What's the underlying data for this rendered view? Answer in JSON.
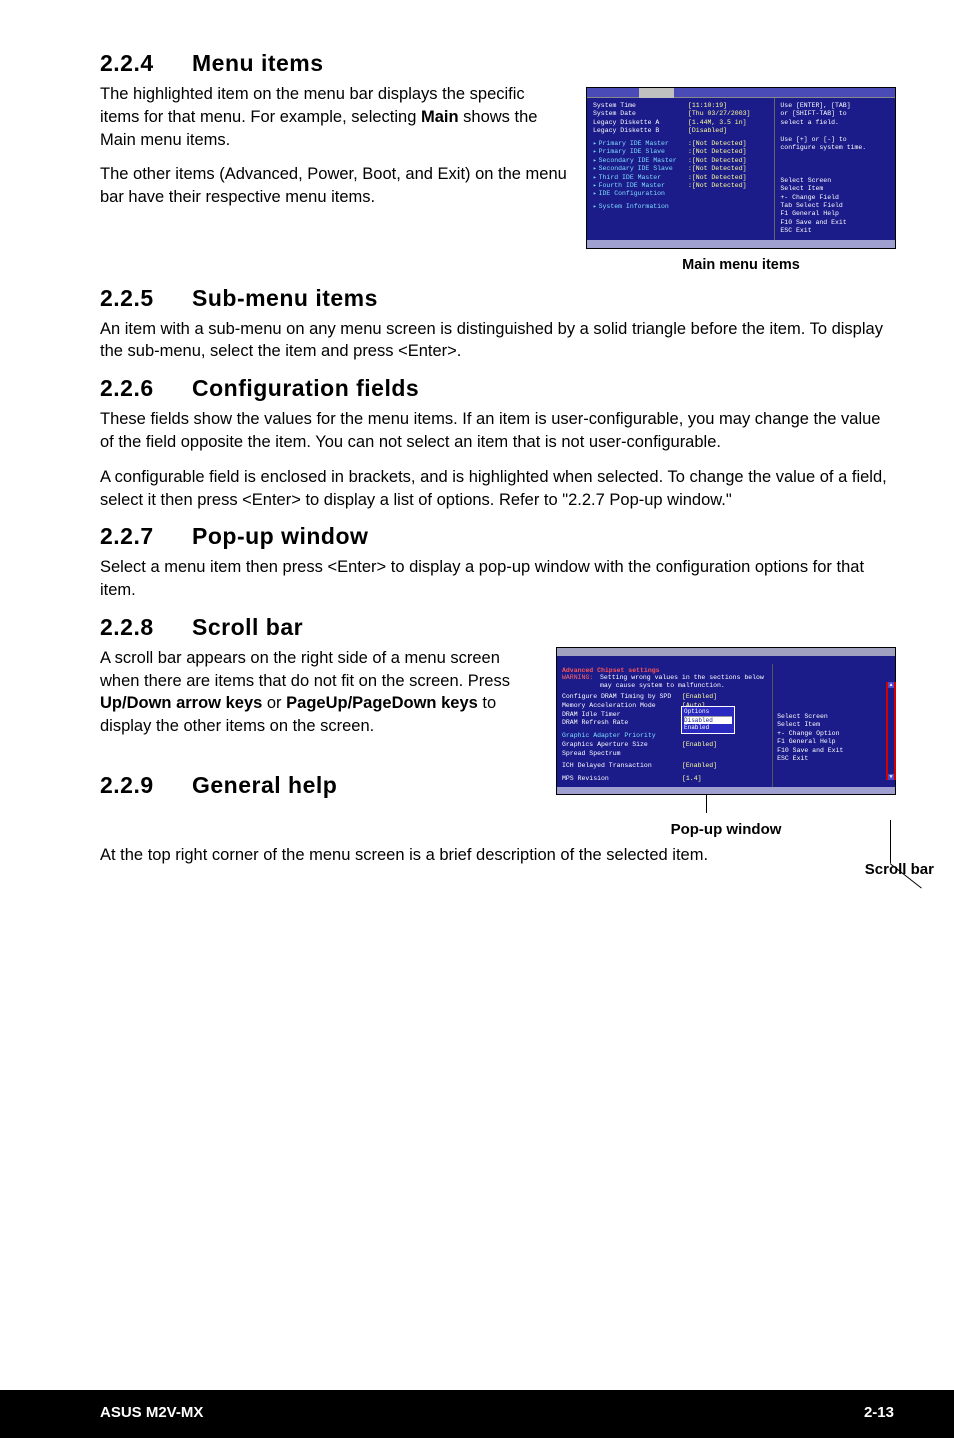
{
  "sec224": {
    "num": "2.2.4",
    "title": "Menu items"
  },
  "p224a": "The highlighted item on the menu bar displays the specific items for that menu. For example, selecting ",
  "p224a_b": "Main",
  "p224a2": " shows the Main menu items.",
  "p224b": "The other items (Advanced, Power, Boot, and Exit) on the menu bar have their respective menu items.",
  "bios1": {
    "left": [
      {
        "type": "wl",
        "lbl": "System Time",
        "val": "[11:10:19]"
      },
      {
        "type": "wl",
        "lbl": "System Date",
        "val": "[Thu 03/27/2003]"
      },
      {
        "type": "wl",
        "lbl": "Legacy Diskette A",
        "val": "[1.44M, 3.5 in]"
      },
      {
        "type": "wl",
        "lbl": "Legacy Diskette B",
        "val": "[Disabled]"
      },
      {
        "type": "sep"
      },
      {
        "type": "cl",
        "lbl": "Primary IDE Master",
        "val": ":[Not Detected]"
      },
      {
        "type": "cl",
        "lbl": "Primary IDE Slave",
        "val": ":[Not Detected]"
      },
      {
        "type": "cl",
        "lbl": "Secondary IDE Master",
        "val": ":[Not Detected]"
      },
      {
        "type": "cl",
        "lbl": "Secondary IDE Slave",
        "val": ":[Not Detected]"
      },
      {
        "type": "cl",
        "lbl": "Third IDE Master",
        "val": ":[Not Detected]"
      },
      {
        "type": "cl",
        "lbl": "Fourth IDE Master",
        "val": ":[Not Detected]"
      },
      {
        "type": "cl",
        "lbl": "IDE Configuration",
        "val": ""
      },
      {
        "type": "sep"
      },
      {
        "type": "cl",
        "lbl": "System Information",
        "val": ""
      }
    ],
    "right": {
      "help": [
        "Use [ENTER], [TAB]",
        "or [SHIFT-TAB] to",
        "select a field.",
        "",
        "Use [+] or [-] to",
        "configure system time."
      ],
      "keys": [
        "        Select Screen",
        "        Select Item",
        "+-     Change Field",
        "Tab   Select Field",
        "F1    General Help",
        "F10   Save and Exit",
        "ESC   Exit"
      ]
    },
    "caption": "Main menu items"
  },
  "sec225": {
    "num": "2.2.5",
    "title": "Sub-menu items"
  },
  "p225": "An item with a sub-menu on any menu screen is distinguished by a solid triangle before the item. To display the sub-menu, select the item and press <Enter>.",
  "sec226": {
    "num": "2.2.6",
    "title": "Configuration fields"
  },
  "p226a": "These fields show the values for the menu items. If an item is user-configurable, you may change the value of the field opposite the item. You can not select an item that is not user-configurable.",
  "p226b": "A configurable field is enclosed in brackets, and is highlighted when selected. To change the value of a field, select it then press <Enter> to display a list of options. Refer to \"2.2.7 Pop-up window.\"",
  "sec227": {
    "num": "2.2.7",
    "title": "Pop-up window"
  },
  "p227": "Select a menu item then press <Enter> to display a pop-up window with the configuration options for that item.",
  "sec228": {
    "num": "2.2.8",
    "title": "Scroll bar"
  },
  "p228a": "A scroll bar appears on the right side of a menu screen when there are items that do not fit on the screen. Press  ",
  "p228a_b1": "Up/Down arrow keys",
  "p228a_m": " or ",
  "p228a_b2": "PageUp/PageDown keys",
  "p228a_e": " to display the other items on the screen.",
  "bios2": {
    "titlebar": "Advanced Chipset settings",
    "warn": "Setting wrong values in the sections below may cause system to malfunction.",
    "opts": [
      {
        "type": "w",
        "lbl": "Configure DRAM Timing by SPD",
        "val": "[Enabled]"
      },
      {
        "type": "w",
        "lbl": "Memory Acceleration Mode",
        "val": "[Auto]"
      },
      {
        "type": "w",
        "lbl": "DRAM Idle Timer",
        "val": ""
      },
      {
        "type": "w",
        "lbl": "DRAM Refresh Rate",
        "val": ""
      },
      {
        "type": "sep"
      },
      {
        "type": "c",
        "lbl": "Graphic Adapter Priority",
        "val": ""
      },
      {
        "type": "w",
        "lbl": "Graphics Aperture Size",
        "val": "[Enabled]"
      },
      {
        "type": "w",
        "lbl": "Spread Spectrum",
        "val": ""
      },
      {
        "type": "sep"
      },
      {
        "type": "w",
        "lbl": "ICH Delayed Transaction",
        "val": "[Enabled]"
      },
      {
        "type": "sep"
      },
      {
        "type": "w",
        "lbl": "MPS Revision",
        "val": "[1.4]"
      }
    ],
    "popup": [
      "Disabled",
      "Enabled"
    ],
    "keys": [
      "      Select Screen",
      "      Select Item",
      "+-    Change Option",
      "F1    General Help",
      "F10   Save and Exit",
      "ESC   Exit"
    ],
    "caption_popup": "Pop-up window",
    "caption_scroll": "Scroll bar"
  },
  "sec229": {
    "num": "2.2.9",
    "title": "General help"
  },
  "p229": "At the top right corner of the menu screen is a brief description of the selected item.",
  "footer": {
    "left": "ASUS M2V-MX",
    "right": "2-13"
  }
}
